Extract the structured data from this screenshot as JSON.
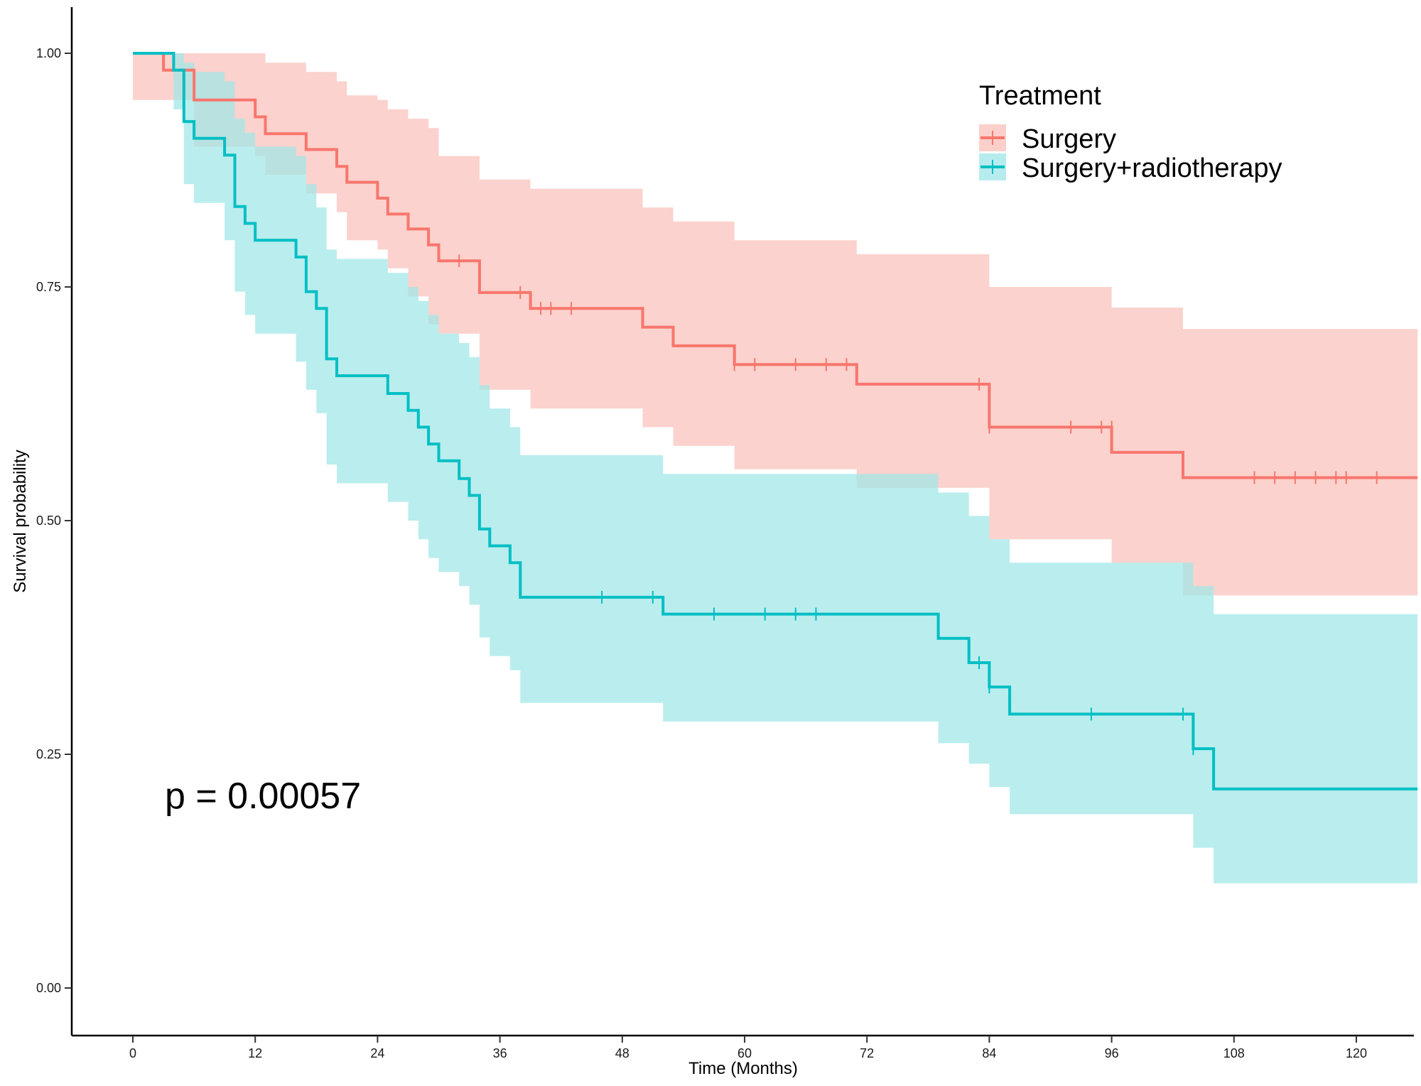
{
  "chart_data": {
    "type": "line",
    "subtype": "kaplan-meier",
    "title": "",
    "xlabel": "Time (Months)",
    "ylabel": "Survival probability",
    "xlim": [
      -6,
      126
    ],
    "ylim": [
      -0.05,
      1.05
    ],
    "xticks": [
      0,
      12,
      24,
      36,
      48,
      60,
      72,
      84,
      96,
      108,
      120
    ],
    "yticks": [
      0.0,
      0.25,
      0.5,
      0.75,
      1.0
    ],
    "ytick_labels": [
      "0.00",
      "0.25",
      "0.50",
      "0.75",
      "1.00"
    ],
    "grid": false,
    "legend": {
      "title": "Treatment",
      "position": "top-right"
    },
    "annotation": "p = 0.00057",
    "series": [
      {
        "name": "Surgery",
        "color": "#F8766D",
        "band_color": "#FAC0BA",
        "steps": [
          [
            0,
            1.0
          ],
          [
            3,
            0.982
          ],
          [
            6,
            0.95
          ],
          [
            12,
            0.932
          ],
          [
            13,
            0.914
          ],
          [
            17,
            0.897
          ],
          [
            20,
            0.879
          ],
          [
            21,
            0.862
          ],
          [
            24,
            0.845
          ],
          [
            25,
            0.828
          ],
          [
            27,
            0.812
          ],
          [
            29,
            0.795
          ],
          [
            30,
            0.778
          ],
          [
            34,
            0.744
          ],
          [
            39,
            0.727
          ],
          [
            50,
            0.707
          ],
          [
            53,
            0.687
          ],
          [
            59,
            0.667
          ],
          [
            71,
            0.646
          ],
          [
            84,
            0.6
          ],
          [
            96,
            0.573
          ],
          [
            103,
            0.546
          ],
          [
            126,
            0.546
          ]
        ],
        "lower": [
          [
            0,
            0.95
          ],
          [
            3,
            0.95
          ],
          [
            6,
            0.9
          ],
          [
            12,
            0.89
          ],
          [
            13,
            0.87
          ],
          [
            17,
            0.85
          ],
          [
            20,
            0.83
          ],
          [
            21,
            0.8
          ],
          [
            24,
            0.79
          ],
          [
            25,
            0.77
          ],
          [
            27,
            0.74
          ],
          [
            29,
            0.71
          ],
          [
            30,
            0.7
          ],
          [
            34,
            0.64
          ],
          [
            39,
            0.62
          ],
          [
            50,
            0.6
          ],
          [
            53,
            0.58
          ],
          [
            59,
            0.555
          ],
          [
            71,
            0.535
          ],
          [
            84,
            0.48
          ],
          [
            96,
            0.455
          ],
          [
            103,
            0.42
          ],
          [
            126,
            0.42
          ]
        ],
        "upper": [
          [
            0,
            1.0
          ],
          [
            3,
            1.0
          ],
          [
            6,
            1.0
          ],
          [
            12,
            1.0
          ],
          [
            13,
            0.99
          ],
          [
            17,
            0.98
          ],
          [
            20,
            0.97
          ],
          [
            21,
            0.955
          ],
          [
            24,
            0.95
          ],
          [
            25,
            0.94
          ],
          [
            27,
            0.93
          ],
          [
            29,
            0.92
          ],
          [
            30,
            0.89
          ],
          [
            34,
            0.865
          ],
          [
            39,
            0.855
          ],
          [
            50,
            0.835
          ],
          [
            53,
            0.82
          ],
          [
            59,
            0.8
          ],
          [
            71,
            0.785
          ],
          [
            84,
            0.75
          ],
          [
            96,
            0.728
          ],
          [
            103,
            0.705
          ],
          [
            126,
            0.705
          ]
        ],
        "censors": [
          [
            32,
            0.778
          ],
          [
            38,
            0.744
          ],
          [
            40,
            0.727
          ],
          [
            41,
            0.727
          ],
          [
            43,
            0.727
          ],
          [
            59,
            0.667
          ],
          [
            61,
            0.667
          ],
          [
            65,
            0.667
          ],
          [
            68,
            0.667
          ],
          [
            70,
            0.667
          ],
          [
            83,
            0.646
          ],
          [
            84,
            0.6
          ],
          [
            92,
            0.6
          ],
          [
            95,
            0.6
          ],
          [
            96,
            0.6
          ],
          [
            110,
            0.546
          ],
          [
            112,
            0.546
          ],
          [
            114,
            0.546
          ],
          [
            116,
            0.546
          ],
          [
            118,
            0.546
          ],
          [
            119,
            0.546
          ],
          [
            122,
            0.546
          ]
        ]
      },
      {
        "name": "Surgery+radiotherapy",
        "color": "#00BFC4",
        "band_color": "#9FE6E8",
        "steps": [
          [
            0,
            1.0
          ],
          [
            4,
            0.982
          ],
          [
            5,
            0.927
          ],
          [
            6,
            0.909
          ],
          [
            9,
            0.891
          ],
          [
            10,
            0.836
          ],
          [
            11,
            0.818
          ],
          [
            12,
            0.8
          ],
          [
            16,
            0.782
          ],
          [
            17,
            0.745
          ],
          [
            18,
            0.727
          ],
          [
            19,
            0.673
          ],
          [
            20,
            0.655
          ],
          [
            25,
            0.636
          ],
          [
            27,
            0.618
          ],
          [
            28,
            0.6
          ],
          [
            29,
            0.582
          ],
          [
            30,
            0.564
          ],
          [
            32,
            0.545
          ],
          [
            33,
            0.527
          ],
          [
            34,
            0.491
          ],
          [
            35,
            0.473
          ],
          [
            37,
            0.455
          ],
          [
            38,
            0.418
          ],
          [
            52,
            0.4
          ],
          [
            79,
            0.374
          ],
          [
            82,
            0.348
          ],
          [
            84,
            0.322
          ],
          [
            86,
            0.293
          ],
          [
            104,
            0.256
          ],
          [
            106,
            0.213
          ],
          [
            126,
            0.213
          ]
        ],
        "lower": [
          [
            0,
            1.0
          ],
          [
            4,
            0.94
          ],
          [
            5,
            0.86
          ],
          [
            6,
            0.84
          ],
          [
            9,
            0.8
          ],
          [
            10,
            0.745
          ],
          [
            11,
            0.72
          ],
          [
            12,
            0.7
          ],
          [
            16,
            0.67
          ],
          [
            17,
            0.64
          ],
          [
            18,
            0.615
          ],
          [
            19,
            0.56
          ],
          [
            20,
            0.54
          ],
          [
            25,
            0.52
          ],
          [
            27,
            0.5
          ],
          [
            28,
            0.48
          ],
          [
            29,
            0.46
          ],
          [
            30,
            0.445
          ],
          [
            32,
            0.43
          ],
          [
            33,
            0.41
          ],
          [
            34,
            0.375
          ],
          [
            35,
            0.355
          ],
          [
            37,
            0.34
          ],
          [
            38,
            0.305
          ],
          [
            52,
            0.285
          ],
          [
            79,
            0.262
          ],
          [
            82,
            0.24
          ],
          [
            84,
            0.215
          ],
          [
            86,
            0.186
          ],
          [
            104,
            0.15
          ],
          [
            106,
            0.112
          ],
          [
            126,
            0.112
          ]
        ],
        "upper": [
          [
            0,
            1.0
          ],
          [
            4,
            1.0
          ],
          [
            5,
            0.99
          ],
          [
            6,
            0.98
          ],
          [
            9,
            0.97
          ],
          [
            10,
            0.93
          ],
          [
            11,
            0.915
          ],
          [
            12,
            0.9
          ],
          [
            16,
            0.89
          ],
          [
            17,
            0.86
          ],
          [
            18,
            0.835
          ],
          [
            19,
            0.79
          ],
          [
            20,
            0.78
          ],
          [
            25,
            0.765
          ],
          [
            27,
            0.75
          ],
          [
            28,
            0.735
          ],
          [
            29,
            0.72
          ],
          [
            30,
            0.7
          ],
          [
            32,
            0.69
          ],
          [
            33,
            0.675
          ],
          [
            34,
            0.645
          ],
          [
            35,
            0.62
          ],
          [
            37,
            0.6
          ],
          [
            38,
            0.57
          ],
          [
            52,
            0.55
          ],
          [
            79,
            0.53
          ],
          [
            82,
            0.505
          ],
          [
            84,
            0.48
          ],
          [
            86,
            0.455
          ],
          [
            104,
            0.43
          ],
          [
            106,
            0.4
          ],
          [
            126,
            0.4
          ]
        ],
        "censors": [
          [
            46,
            0.418
          ],
          [
            51,
            0.418
          ],
          [
            57,
            0.4
          ],
          [
            62,
            0.4
          ],
          [
            65,
            0.4
          ],
          [
            67,
            0.4
          ],
          [
            83,
            0.348
          ],
          [
            84,
            0.322
          ],
          [
            94,
            0.293
          ],
          [
            103,
            0.293
          ],
          [
            104,
            0.256
          ]
        ]
      }
    ]
  }
}
